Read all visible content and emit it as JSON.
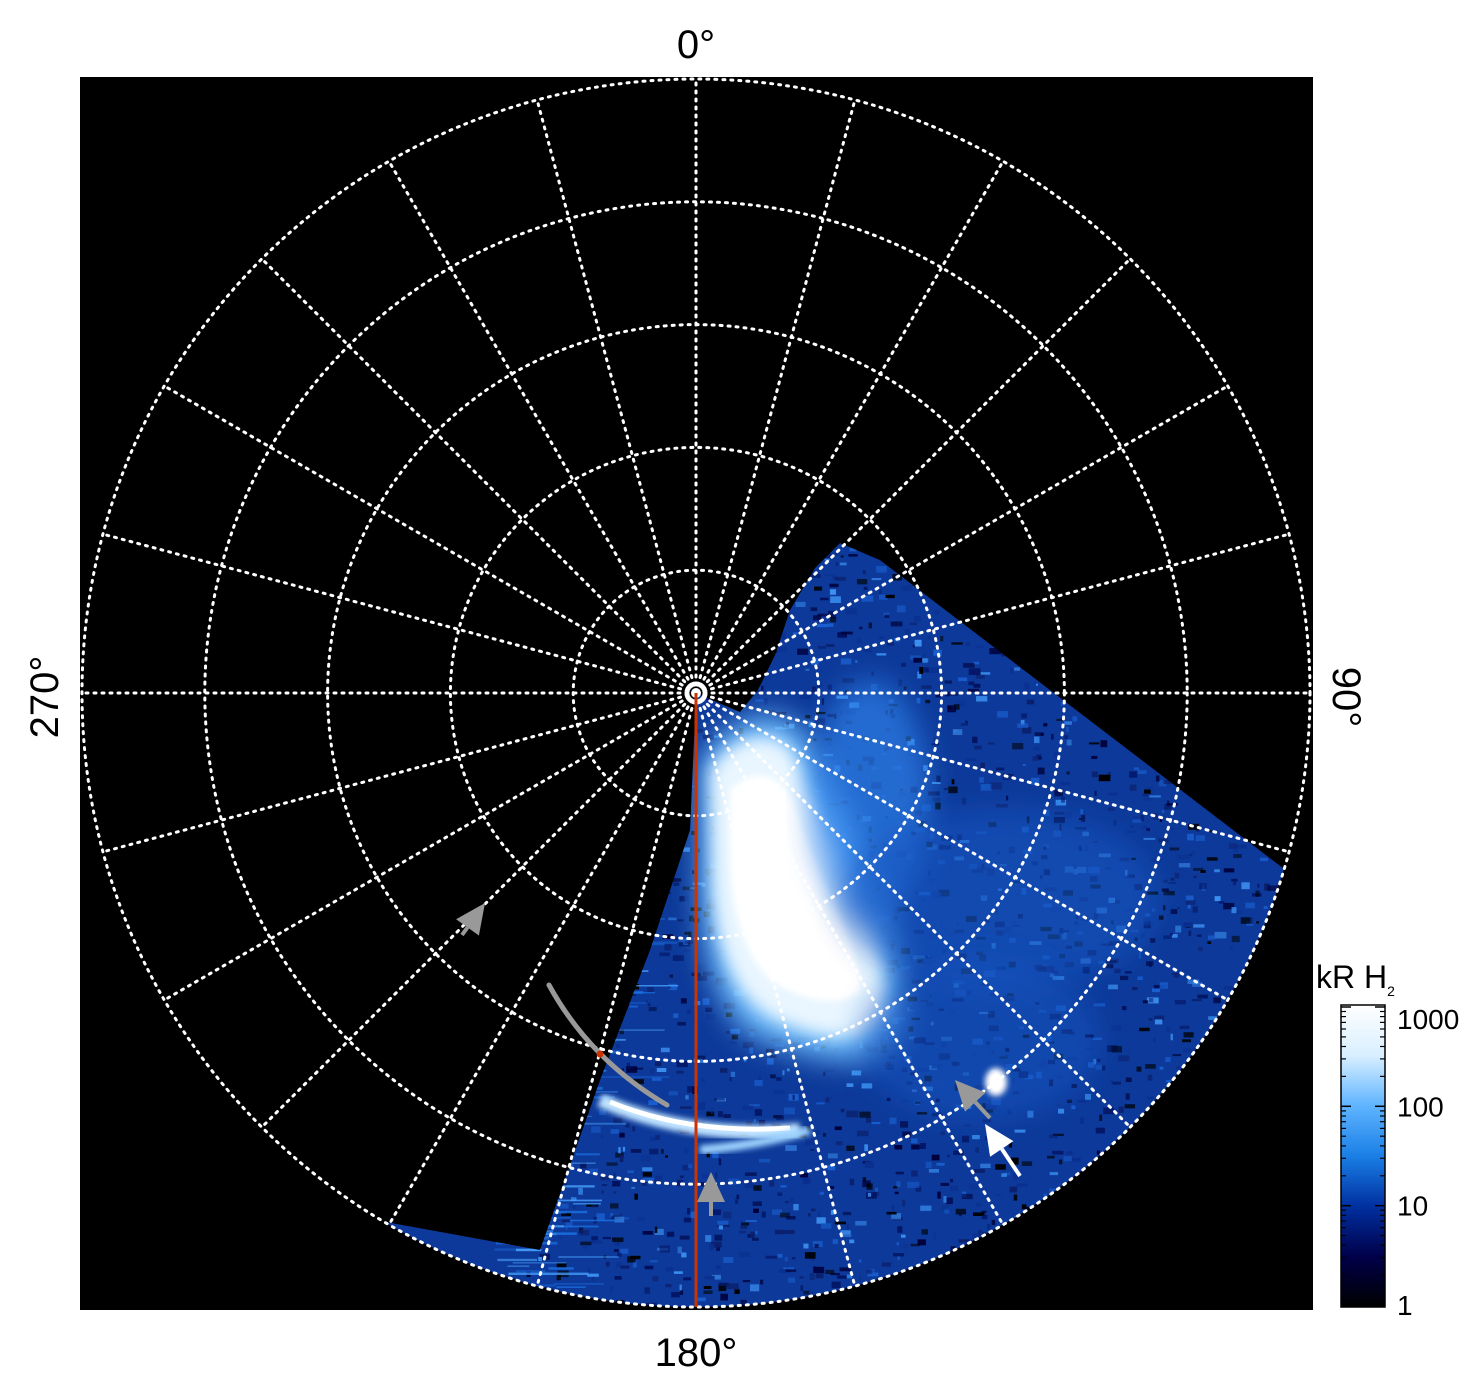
{
  "chart_data": {
    "type": "heatmap",
    "projection": "polar",
    "title": "",
    "angle_labels": [
      {
        "angle_deg": 0,
        "text": "0°"
      },
      {
        "angle_deg": 90,
        "text": "90°"
      },
      {
        "angle_deg": 180,
        "text": "180°"
      },
      {
        "angle_deg": 270,
        "text": "270°"
      }
    ],
    "angular_grid_step_deg": 15,
    "radial_grid_rings": 5,
    "grid": true,
    "grid_style": "dotted white",
    "colorbar": {
      "label": "kR H",
      "label_subscript": "2",
      "scale": "log",
      "range": [
        1,
        1000
      ],
      "ticks": [
        {
          "value": 1,
          "text": "1"
        },
        {
          "value": 10,
          "text": "10"
        },
        {
          "value": 100,
          "text": "100"
        },
        {
          "value": 1000,
          "text": "1000"
        }
      ],
      "colors": [
        "#000000",
        "#00004a",
        "#0030a0",
        "#1a7fe6",
        "#5fb4ff",
        "#d8efff",
        "#ffffff"
      ]
    },
    "reference_line": {
      "angle_deg": 180,
      "color": "#cc3300"
    },
    "annotations": [
      {
        "kind": "arrow",
        "color": "#999999"
      },
      {
        "kind": "arrow",
        "color": "#999999"
      },
      {
        "kind": "arrow",
        "color": "#999999"
      },
      {
        "kind": "arrow",
        "color": "#ffffff"
      },
      {
        "kind": "arc",
        "color": "#999999"
      }
    ]
  }
}
